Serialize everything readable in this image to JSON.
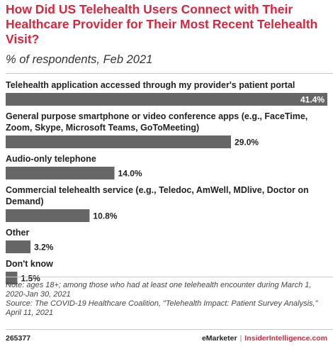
{
  "header": {
    "title": "How Did US Telehealth Users Connect with Their Healthcare Provider for Their Most Recent Telehealth Visit?",
    "subtitle": "% of respondents, Feb 2021"
  },
  "chart_data": {
    "type": "bar",
    "orientation": "horizontal",
    "categories": [
      [
        "Telehealth application accessed through my provider's patient portal"
      ],
      [
        "General purpose smartphone or video conference apps (e.g., FaceTime,",
        "Zoom, Skype, Microsoft Teams, GoToMeeting)"
      ],
      [
        "Audio-only telephone"
      ],
      [
        "Commercial telehealth service (e.g., Teledoc, AmWell, MDlive, Doctor on",
        "Demand)"
      ],
      [
        "Other"
      ],
      [
        "Don't know"
      ]
    ],
    "values": [
      41.4,
      29.0,
      14.0,
      10.8,
      3.2,
      1.5
    ],
    "value_labels": [
      "41.4%",
      "29.0%",
      "14.0%",
      "10.8%",
      "3.2%",
      "1.5%"
    ],
    "xlim": [
      0,
      41.4
    ],
    "bar_color": "#666666",
    "grid": false
  },
  "notes": {
    "note": "Note: ages 18+; among those who had at least one telehealth encounter during March 1, 2020-Jan 30, 2021",
    "source": "Source: The COVID-19 Healthcare Coalition, \"Telehealth Impact: Patient Survey Analysis,\" April 11, 2021"
  },
  "footer": {
    "id": "265377",
    "brand_left": "eMarketer",
    "separator": "|",
    "brand_right": "InsiderIntelligence.com"
  }
}
